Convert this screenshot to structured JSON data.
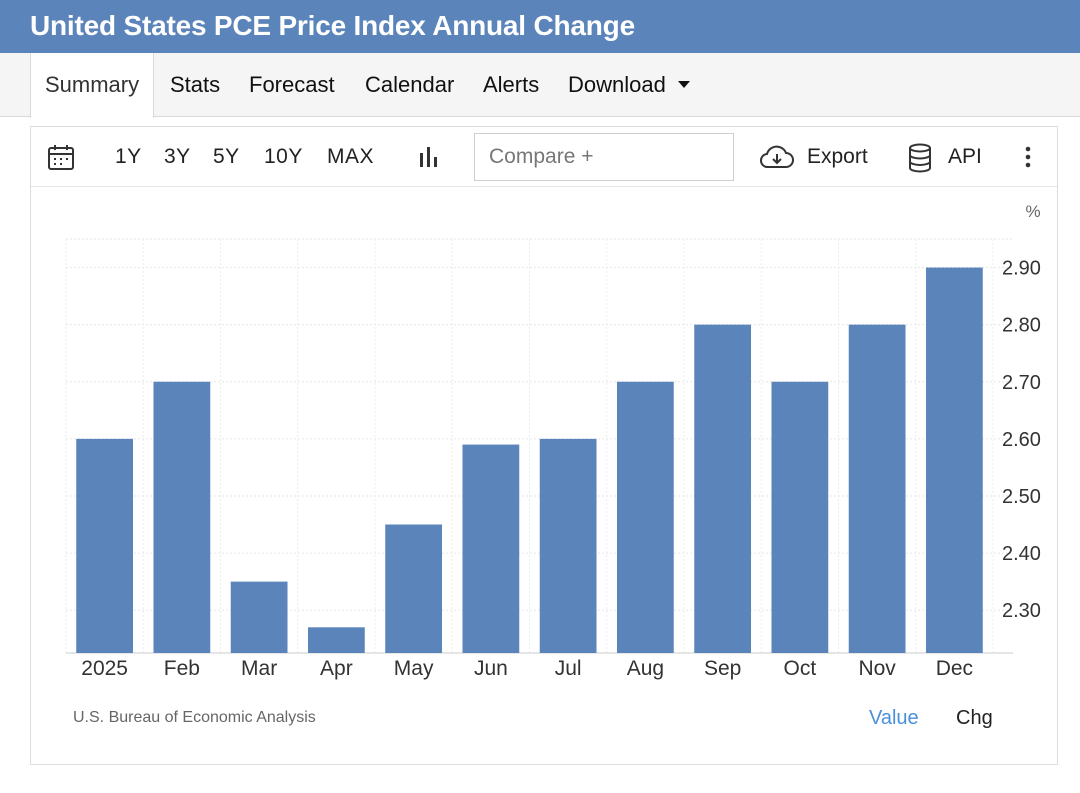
{
  "header": {
    "title": "United States PCE Price Index Annual Change"
  },
  "tabs": [
    {
      "label": "Summary",
      "active": true
    },
    {
      "label": "Stats"
    },
    {
      "label": "Forecast"
    },
    {
      "label": "Calendar"
    },
    {
      "label": "Alerts"
    },
    {
      "label": "Download"
    }
  ],
  "toolbar": {
    "ranges": [
      "1Y",
      "3Y",
      "5Y",
      "10Y",
      "MAX"
    ],
    "compare_placeholder": "Compare +",
    "export_label": "Export",
    "api_label": "API",
    "icons": [
      "calendar-icon",
      "bar-chart-icon",
      "cloud-download-icon",
      "database-icon",
      "more-vertical-icon"
    ]
  },
  "footer": {
    "source": "U.S. Bureau of Economic Analysis",
    "value_label": "Value",
    "chg_label": "Chg"
  },
  "colors": {
    "header": "#5b84bb",
    "bar": "#5b84bb",
    "value_link": "#4a90d9"
  },
  "chart_data": {
    "type": "bar",
    "title": "United States PCE Price Index Annual Change",
    "categories": [
      "2025",
      "Feb",
      "Mar",
      "Apr",
      "May",
      "Jun",
      "Jul",
      "Aug",
      "Sep",
      "Oct",
      "Nov",
      "Dec"
    ],
    "values": [
      2.6,
      2.7,
      2.35,
      2.27,
      2.45,
      2.59,
      2.6,
      2.7,
      2.8,
      2.7,
      2.8,
      2.9
    ],
    "yticks": [
      "2.30",
      "2.40",
      "2.50",
      "2.60",
      "2.70",
      "2.80",
      "2.90"
    ],
    "ylabel": "%",
    "ylim": [
      2.225,
      2.95
    ],
    "grid": true
  }
}
